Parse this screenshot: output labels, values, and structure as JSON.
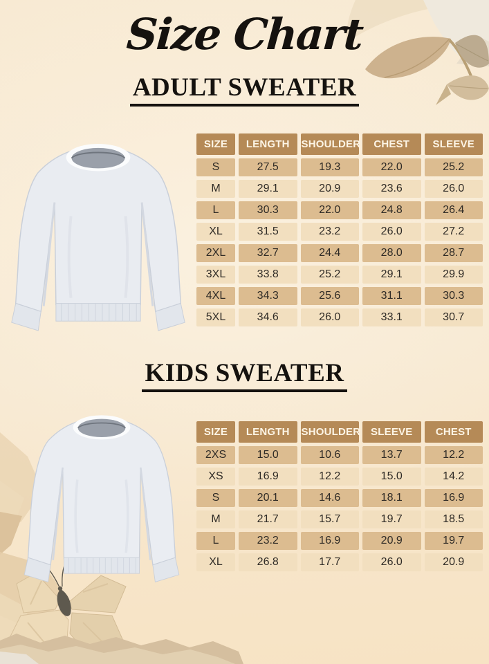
{
  "page": {
    "title": "Size Chart",
    "background_color": "#f7e8d0"
  },
  "adult": {
    "heading": "ADULT SWEATER",
    "image": "adult-sweater-illustration",
    "table": {
      "columns": [
        "SIZE",
        "LENGTH",
        "SHOULDER",
        "CHEST",
        "SLEEVE"
      ],
      "rows": [
        [
          "S",
          "27.5",
          "19.3",
          "22.0",
          "25.2"
        ],
        [
          "M",
          "29.1",
          "20.9",
          "23.6",
          "26.0"
        ],
        [
          "L",
          "30.3",
          "22.0",
          "24.8",
          "26.4"
        ],
        [
          "XL",
          "31.5",
          "23.2",
          "26.0",
          "27.2"
        ],
        [
          "2XL",
          "32.7",
          "24.4",
          "28.0",
          "28.7"
        ],
        [
          "3XL",
          "33.8",
          "25.2",
          "29.1",
          "29.9"
        ],
        [
          "4XL",
          "34.3",
          "25.6",
          "31.1",
          "30.3"
        ],
        [
          "5XL",
          "34.6",
          "26.0",
          "33.1",
          "30.7"
        ]
      ]
    }
  },
  "kids": {
    "heading": "KIDS SWEATER",
    "image": "kids-sweater-illustration",
    "table": {
      "columns": [
        "SIZE",
        "LENGTH",
        "SHOULDER",
        "SLEEVE",
        "CHEST"
      ],
      "rows": [
        [
          "2XS",
          "15.0",
          "10.6",
          "13.7",
          "12.2"
        ],
        [
          "XS",
          "16.9",
          "12.2",
          "15.0",
          "14.2"
        ],
        [
          "S",
          "20.1",
          "14.6",
          "18.1",
          "16.9"
        ],
        [
          "M",
          "21.7",
          "15.7",
          "19.7",
          "18.5"
        ],
        [
          "L",
          "23.2",
          "16.9",
          "20.9",
          "19.7"
        ],
        [
          "XL",
          "26.8",
          "17.7",
          "26.0",
          "20.9"
        ]
      ]
    }
  },
  "colors": {
    "background": "#f7e8d0",
    "table_header_bg": "#b58a57",
    "table_header_text": "#fdf5e6",
    "row_dark": "#dcbc90",
    "row_light": "#f2dfbf",
    "cell_text": "#2f2b26",
    "heading_text": "#15120f",
    "decor_tan": "#cdb28e",
    "decor_paper": "#e9d6b4"
  },
  "decorations": {
    "top_right": "paper-craft-leaves",
    "bottom_left": "paper-craft-butterfly-and-torn-paper",
    "bottom_edge": "torn-paper-strip"
  }
}
